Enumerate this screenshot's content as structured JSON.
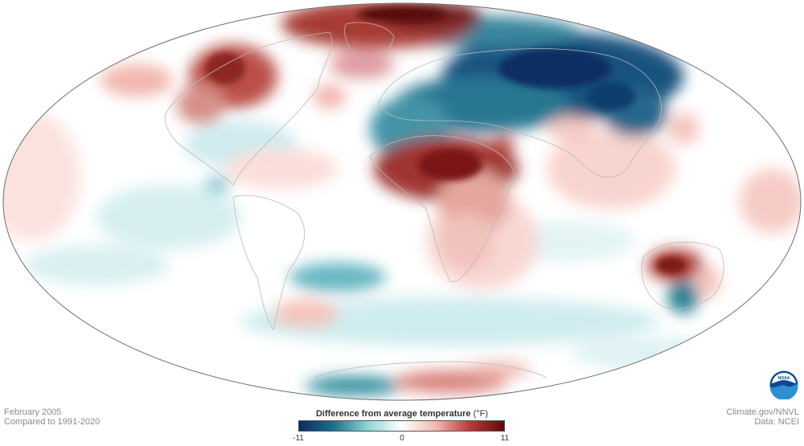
{
  "footer": {
    "date": "February 2005",
    "comparison": "Compared to 1991-2020",
    "credit": "Climate.gov/NNVL",
    "source": "Data: NCEI"
  },
  "legend": {
    "title": "Difference from average temperature",
    "unit": "(°F)",
    "min_label": "-11",
    "mid_label": "0",
    "max_label": "11",
    "range": [
      -11,
      11
    ],
    "colors": [
      "#0c2a5e",
      "#1a6f8a",
      "#8fd3d6",
      "#ffffff",
      "#f2b8b0",
      "#b83b36",
      "#5e0a0a"
    ]
  },
  "logo": {
    "text": "NOAA"
  },
  "map": {
    "projection": "Mollweide",
    "ocean_color": "#ffffff",
    "outline_color": "#6e6e6e",
    "coast_color": "#b9b9b9"
  }
}
